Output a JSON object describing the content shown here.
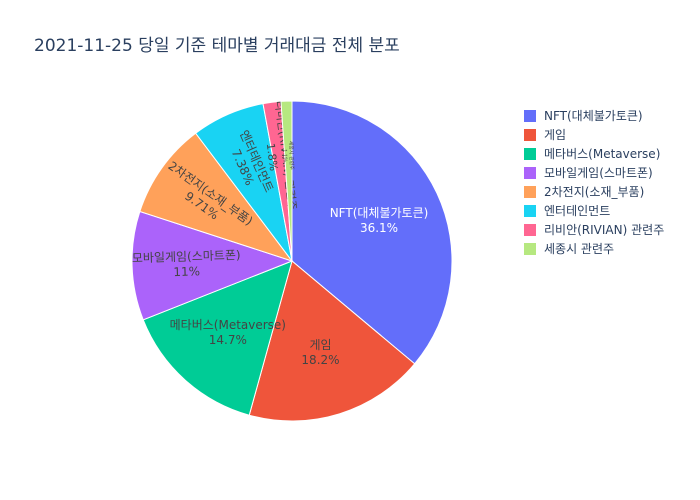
{
  "chart_data": {
    "type": "pie",
    "title": "2021-11-25 당일 기준 테마별 거래대금 전체 분포",
    "slices": [
      {
        "label": "NFT(대체불가토큰)",
        "value": 36.1,
        "text": "36.1%",
        "color": "#636efa"
      },
      {
        "label": "게임",
        "value": 18.2,
        "text": "18.2%",
        "color": "#EF553B"
      },
      {
        "label": "메타버스(Metaverse)",
        "value": 14.7,
        "text": "14.7%",
        "color": "#00cc96"
      },
      {
        "label": "모바일게임(스마트폰)",
        "value": 11,
        "text": "11%",
        "color": "#ab63fa"
      },
      {
        "label": "2차전지(소재_부품)",
        "value": 9.71,
        "text": "9.71%",
        "color": "#FFA15A"
      },
      {
        "label": "엔터테인먼트",
        "value": 7.38,
        "text": "7.38%",
        "color": "#19d3f3"
      },
      {
        "label": "리비안(RIVIAN) 관련주",
        "value": 1.8,
        "text": "1.8%",
        "color": "#FF6692"
      },
      {
        "label": "세종시 관련주",
        "value": 1.1,
        "text": "1.1%",
        "color": "#B6E880"
      }
    ],
    "legend_placement": "right"
  }
}
